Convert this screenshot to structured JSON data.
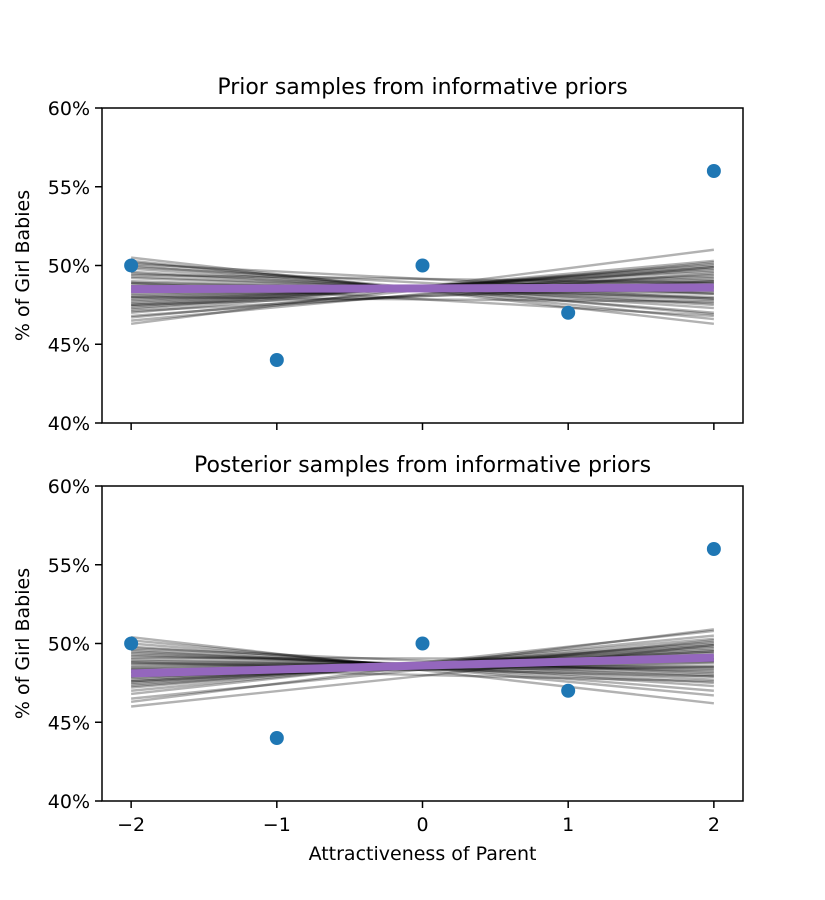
{
  "figure": {
    "xlabel": "Attractiveness of Parent",
    "colors": {
      "points": "#1f77b4",
      "sample_lines": "#000000",
      "mean_line": "#9467bd"
    }
  },
  "chart_data": [
    {
      "type": "scatter",
      "title": "Prior samples from informative priors",
      "xlabel": "",
      "ylabel": "% of Girl Babies",
      "xlim": [
        -2.2,
        2.2
      ],
      "ylim": [
        40,
        60
      ],
      "xticks": [
        -2,
        -1,
        0,
        1,
        2
      ],
      "xtick_labels_visible": false,
      "yticks": [
        40,
        45,
        50,
        55,
        60
      ],
      "ytick_labels": [
        "40%",
        "45%",
        "50%",
        "55%",
        "60%"
      ],
      "grid": false,
      "points": {
        "x": [
          -2,
          -1,
          0,
          1,
          2
        ],
        "y": [
          50,
          44,
          50,
          47,
          56
        ]
      },
      "mean_line": {
        "y_at_x_minus2": 48.5,
        "y_at_x_plus2": 48.6
      },
      "sample_lines": [
        [
          50.5,
          46.3
        ],
        [
          50.3,
          46.6
        ],
        [
          50.2,
          46.9
        ],
        [
          50.0,
          47.0
        ],
        [
          49.8,
          47.3
        ],
        [
          49.6,
          47.5
        ],
        [
          49.5,
          47.6
        ],
        [
          49.3,
          47.8
        ],
        [
          49.2,
          47.9
        ],
        [
          49.0,
          48.0
        ],
        [
          48.9,
          48.2
        ],
        [
          48.8,
          48.3
        ],
        [
          48.7,
          48.4
        ],
        [
          48.6,
          48.6
        ],
        [
          48.5,
          48.7
        ],
        [
          48.4,
          48.8
        ],
        [
          48.3,
          48.9
        ],
        [
          48.2,
          49.0
        ],
        [
          48.1,
          49.1
        ],
        [
          48.0,
          49.2
        ],
        [
          47.9,
          49.3
        ],
        [
          47.8,
          49.4
        ],
        [
          47.7,
          49.6
        ],
        [
          47.6,
          49.7
        ],
        [
          47.5,
          49.8
        ],
        [
          47.4,
          49.9
        ],
        [
          47.3,
          50.0
        ],
        [
          47.2,
          50.1
        ],
        [
          47.0,
          50.3
        ],
        [
          46.8,
          49.5
        ],
        [
          46.7,
          50.2
        ],
        [
          46.5,
          49.9
        ],
        [
          46.3,
          51.0
        ],
        [
          49.9,
          47.9
        ],
        [
          48.9,
          46.8
        ],
        [
          47.5,
          48.6
        ],
        [
          49.4,
          48.9
        ],
        [
          48.0,
          47.7
        ],
        [
          50.1,
          48.2
        ],
        [
          47.1,
          49.0
        ]
      ]
    },
    {
      "type": "scatter",
      "title": "Posterior samples from informative priors",
      "xlabel": "Attractiveness of Parent",
      "ylabel": "% of Girl Babies",
      "xlim": [
        -2.2,
        2.2
      ],
      "ylim": [
        40,
        60
      ],
      "xticks": [
        -2,
        -1,
        0,
        1,
        2
      ],
      "xtick_labels": [
        "−2",
        "−1",
        "0",
        "1",
        "2"
      ],
      "yticks": [
        40,
        45,
        50,
        55,
        60
      ],
      "ytick_labels": [
        "40%",
        "45%",
        "50%",
        "55%",
        "60%"
      ],
      "grid": false,
      "points": {
        "x": [
          -2,
          -1,
          0,
          1,
          2
        ],
        "y": [
          50,
          44,
          50,
          47,
          56
        ]
      },
      "mean_line": {
        "y_at_x_minus2": 48.1,
        "y_at_x_plus2": 49.1
      },
      "sample_lines": [
        [
          50.4,
          46.2
        ],
        [
          50.2,
          46.7
        ],
        [
          50.0,
          47.0
        ],
        [
          49.8,
          47.3
        ],
        [
          49.6,
          47.5
        ],
        [
          49.5,
          47.7
        ],
        [
          49.4,
          47.9
        ],
        [
          49.3,
          48.0
        ],
        [
          49.2,
          48.2
        ],
        [
          49.0,
          48.3
        ],
        [
          48.9,
          48.4
        ],
        [
          48.8,
          48.5
        ],
        [
          48.7,
          48.6
        ],
        [
          48.6,
          48.8
        ],
        [
          48.5,
          48.9
        ],
        [
          48.4,
          49.0
        ],
        [
          48.3,
          49.1
        ],
        [
          48.2,
          49.2
        ],
        [
          48.1,
          49.3
        ],
        [
          48.0,
          49.4
        ],
        [
          47.9,
          49.5
        ],
        [
          47.8,
          49.6
        ],
        [
          47.7,
          49.7
        ],
        [
          47.6,
          49.8
        ],
        [
          47.5,
          49.9
        ],
        [
          47.4,
          50.0
        ],
        [
          47.3,
          50.1
        ],
        [
          47.2,
          50.3
        ],
        [
          47.0,
          50.5
        ],
        [
          46.8,
          50.8
        ],
        [
          46.5,
          50.2
        ],
        [
          46.3,
          50.9
        ],
        [
          46.0,
          49.9
        ],
        [
          49.7,
          48.1
        ],
        [
          48.4,
          47.6
        ],
        [
          47.9,
          48.8
        ],
        [
          49.1,
          49.0
        ],
        [
          48.2,
          48.5
        ],
        [
          47.6,
          49.5
        ],
        [
          48.8,
          47.9
        ]
      ]
    }
  ]
}
